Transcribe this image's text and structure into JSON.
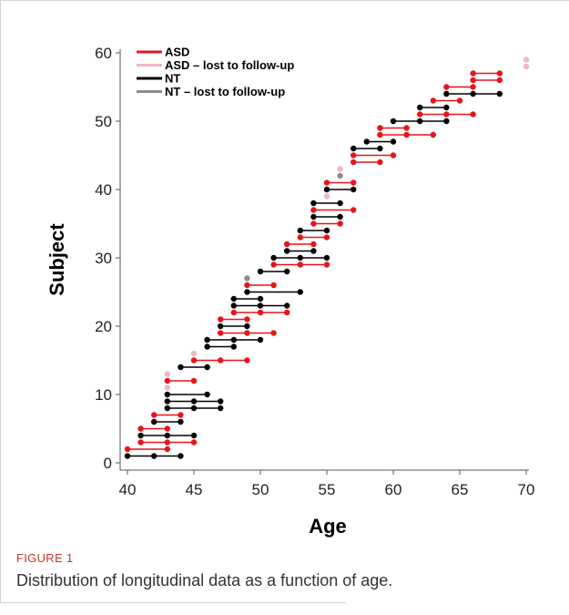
{
  "figure": {
    "label": "FIGURE 1",
    "caption": "Distribution of longitudinal data as a function of age."
  },
  "chart_data": {
    "type": "line",
    "xlabel": "Age",
    "ylabel": "Subject",
    "xlim": [
      40,
      70
    ],
    "ylim": [
      0,
      60
    ],
    "xticks": [
      40,
      45,
      50,
      55,
      60,
      65,
      70
    ],
    "yticks": [
      0,
      10,
      20,
      30,
      40,
      50,
      60
    ],
    "grid": false,
    "legend_position": "top-left",
    "legend": [
      {
        "key": "ASD",
        "label": "ASD",
        "color": "#e8141b"
      },
      {
        "key": "ASD_lost",
        "label": "ASD – lost to follow-up",
        "color": "#f4b6c2"
      },
      {
        "key": "NT",
        "label": "NT",
        "color": "#000000"
      },
      {
        "key": "NT_lost",
        "label": "NT – lost to follow-up",
        "color": "#8c8c8c"
      }
    ],
    "subjects": [
      {
        "subject": 1,
        "group": "NT",
        "ages": [
          40,
          42,
          44
        ]
      },
      {
        "subject": 2,
        "group": "ASD",
        "ages": [
          40,
          43
        ]
      },
      {
        "subject": 3,
        "group": "ASD",
        "ages": [
          41,
          43,
          45
        ]
      },
      {
        "subject": 4,
        "group": "NT",
        "ages": [
          41,
          43,
          45
        ]
      },
      {
        "subject": 5,
        "group": "ASD",
        "ages": [
          41,
          43
        ]
      },
      {
        "subject": 6,
        "group": "NT",
        "ages": [
          42,
          44
        ]
      },
      {
        "subject": 7,
        "group": "ASD",
        "ages": [
          42,
          44
        ]
      },
      {
        "subject": 8,
        "group": "NT",
        "ages": [
          43,
          45,
          47
        ]
      },
      {
        "subject": 9,
        "group": "NT",
        "ages": [
          43,
          45,
          47
        ]
      },
      {
        "subject": 10,
        "group": "NT",
        "ages": [
          43,
          46
        ]
      },
      {
        "subject": 11,
        "group": "ASD_lost",
        "ages": [
          43
        ]
      },
      {
        "subject": 12,
        "group": "ASD",
        "ages": [
          43,
          45
        ]
      },
      {
        "subject": 13,
        "group": "ASD_lost",
        "ages": [
          43
        ]
      },
      {
        "subject": 14,
        "group": "NT",
        "ages": [
          44,
          46
        ]
      },
      {
        "subject": 15,
        "group": "ASD",
        "ages": [
          45,
          47,
          49
        ]
      },
      {
        "subject": 16,
        "group": "ASD_lost",
        "ages": [
          45
        ]
      },
      {
        "subject": 17,
        "group": "NT",
        "ages": [
          46,
          48
        ]
      },
      {
        "subject": 18,
        "group": "NT",
        "ages": [
          46,
          48,
          50
        ]
      },
      {
        "subject": 19,
        "group": "ASD",
        "ages": [
          47,
          49,
          51
        ]
      },
      {
        "subject": 20,
        "group": "NT",
        "ages": [
          47,
          49
        ]
      },
      {
        "subject": 21,
        "group": "ASD",
        "ages": [
          47,
          49
        ]
      },
      {
        "subject": 22,
        "group": "ASD",
        "ages": [
          48,
          50,
          52
        ]
      },
      {
        "subject": 23,
        "group": "NT",
        "ages": [
          48,
          50,
          52
        ]
      },
      {
        "subject": 24,
        "group": "NT",
        "ages": [
          48,
          50
        ]
      },
      {
        "subject": 25,
        "group": "NT",
        "ages": [
          49,
          53
        ]
      },
      {
        "subject": 26,
        "group": "ASD",
        "ages": [
          49,
          51
        ]
      },
      {
        "subject": 27,
        "group": "NT_lost",
        "ages": [
          49
        ]
      },
      {
        "subject": 28,
        "group": "NT",
        "ages": [
          50,
          52
        ]
      },
      {
        "subject": 29,
        "group": "ASD",
        "ages": [
          51,
          53,
          55
        ]
      },
      {
        "subject": 30,
        "group": "NT",
        "ages": [
          51,
          53,
          55
        ]
      },
      {
        "subject": 31,
        "group": "NT",
        "ages": [
          52,
          54
        ]
      },
      {
        "subject": 32,
        "group": "ASD",
        "ages": [
          52,
          54
        ]
      },
      {
        "subject": 33,
        "group": "ASD",
        "ages": [
          53,
          55
        ]
      },
      {
        "subject": 34,
        "group": "NT",
        "ages": [
          53,
          55
        ]
      },
      {
        "subject": 35,
        "group": "ASD",
        "ages": [
          54,
          56
        ]
      },
      {
        "subject": 36,
        "group": "NT",
        "ages": [
          54,
          56
        ]
      },
      {
        "subject": 37,
        "group": "ASD",
        "ages": [
          54,
          57
        ]
      },
      {
        "subject": 38,
        "group": "NT",
        "ages": [
          54,
          56
        ]
      },
      {
        "subject": 39,
        "group": "ASD_lost",
        "ages": [
          55
        ]
      },
      {
        "subject": 40,
        "group": "NT",
        "ages": [
          55,
          57
        ]
      },
      {
        "subject": 41,
        "group": "ASD",
        "ages": [
          55,
          57
        ]
      },
      {
        "subject": 42,
        "group": "NT_lost",
        "ages": [
          56
        ]
      },
      {
        "subject": 43,
        "group": "ASD_lost",
        "ages": [
          56
        ]
      },
      {
        "subject": 44,
        "group": "ASD",
        "ages": [
          57,
          59
        ]
      },
      {
        "subject": 45,
        "group": "ASD",
        "ages": [
          57,
          60
        ]
      },
      {
        "subject": 46,
        "group": "NT",
        "ages": [
          57,
          59
        ]
      },
      {
        "subject": 47,
        "group": "NT",
        "ages": [
          58,
          60
        ]
      },
      {
        "subject": 48,
        "group": "ASD",
        "ages": [
          59,
          61,
          63
        ]
      },
      {
        "subject": 49,
        "group": "ASD",
        "ages": [
          59,
          61
        ]
      },
      {
        "subject": 50,
        "group": "NT",
        "ages": [
          60,
          62,
          64
        ]
      },
      {
        "subject": 51,
        "group": "ASD",
        "ages": [
          62,
          64,
          66
        ]
      },
      {
        "subject": 52,
        "group": "NT",
        "ages": [
          62,
          64
        ]
      },
      {
        "subject": 53,
        "group": "ASD",
        "ages": [
          63,
          65
        ]
      },
      {
        "subject": 54,
        "group": "NT",
        "ages": [
          64,
          66,
          68
        ]
      },
      {
        "subject": 55,
        "group": "ASD",
        "ages": [
          64,
          66
        ]
      },
      {
        "subject": 56,
        "group": "ASD",
        "ages": [
          66,
          68
        ]
      },
      {
        "subject": 57,
        "group": "ASD",
        "ages": [
          66,
          68
        ]
      },
      {
        "subject": 58,
        "group": "ASD_lost",
        "ages": [
          70
        ]
      },
      {
        "subject": 59,
        "group": "ASD_lost",
        "ages": [
          70
        ]
      }
    ]
  }
}
